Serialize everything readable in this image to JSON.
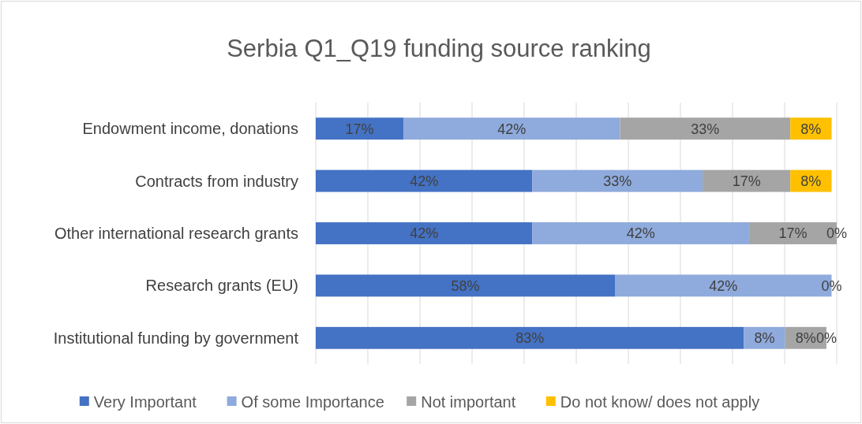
{
  "chart_data": {
    "type": "bar",
    "orientation": "horizontal",
    "stacked": true,
    "title": "Serbia Q1_Q19 funding source ranking",
    "categories": [
      "Endowment income, donations",
      "Contracts from industry",
      "Other international research grants",
      "Research grants (EU)",
      "Institutional funding by government"
    ],
    "series": [
      {
        "name": "Very Important",
        "color": "#4472c4",
        "values": [
          17,
          42,
          42,
          58,
          83
        ],
        "value_labels": [
          "17%",
          "42%",
          "42%",
          "58%",
          "83%"
        ]
      },
      {
        "name": "Of some Importance",
        "color": "#8faadc",
        "values": [
          42,
          33,
          42,
          42,
          8
        ],
        "value_labels": [
          "42%",
          "33%",
          "42%",
          "42%",
          "8%"
        ]
      },
      {
        "name": "Not important",
        "color": "#a5a5a5",
        "values": [
          33,
          17,
          17,
          0,
          8
        ],
        "value_labels": [
          "33%",
          "17%",
          "17%",
          null,
          "8%"
        ]
      },
      {
        "name": "Do not know/ does not apply",
        "color": "#ffc000",
        "values": [
          8,
          8,
          0,
          0,
          0
        ],
        "value_labels": [
          "8%",
          "8%",
          "0%",
          "0%",
          "0%"
        ]
      }
    ],
    "grid": "x",
    "legend": "bottom"
  }
}
